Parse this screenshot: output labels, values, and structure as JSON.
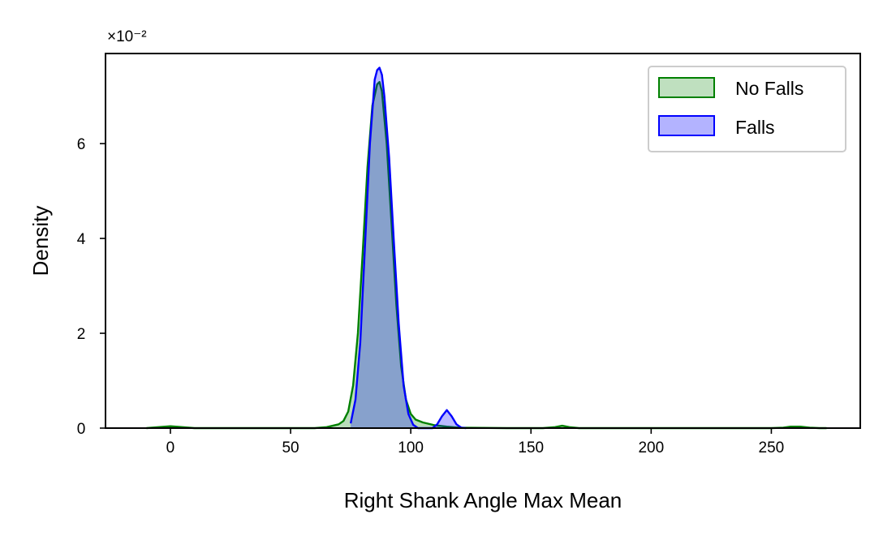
{
  "chart_data": {
    "type": "area",
    "xlabel": "Right Shank Angle Max Mean",
    "ylabel": "Density",
    "y_offset_label": "×10⁻²",
    "xlim": [
      -27,
      287
    ],
    "ylim": [
      0,
      7.9
    ],
    "x_ticks": [
      0,
      50,
      100,
      150,
      200,
      250
    ],
    "x_tick_labels": [
      "0",
      "50",
      "100",
      "150",
      "200",
      "250"
    ],
    "y_ticks": [
      0,
      2,
      4,
      6
    ],
    "y_tick_labels": [
      "0",
      "2",
      "4",
      "6"
    ],
    "grid": false,
    "legend_position": "top-right",
    "series": [
      {
        "name": "No Falls",
        "color": "#008000",
        "fill": "#bfe0bf",
        "x": [
          -10,
          -5,
          0,
          5,
          10,
          30,
          60,
          65,
          70,
          72,
          74,
          76,
          78,
          80,
          82,
          84,
          86,
          87,
          88,
          90,
          92,
          94,
          96,
          98,
          100,
          102,
          105,
          110,
          115,
          120,
          140,
          155,
          160,
          163,
          166,
          170,
          180,
          200,
          250,
          255,
          258,
          262,
          266,
          270,
          273
        ],
        "values": [
          0.0,
          0.02,
          0.04,
          0.02,
          0.0,
          0.0,
          0.0,
          0.02,
          0.08,
          0.15,
          0.35,
          0.9,
          2.0,
          3.7,
          5.5,
          6.8,
          7.25,
          7.3,
          7.1,
          6.0,
          4.3,
          2.6,
          1.3,
          0.6,
          0.3,
          0.18,
          0.12,
          0.06,
          0.03,
          0.01,
          0.0,
          0.0,
          0.02,
          0.05,
          0.02,
          0.0,
          0.0,
          0.0,
          0.0,
          0.01,
          0.03,
          0.03,
          0.01,
          0.0,
          0.0
        ]
      },
      {
        "name": "Falls",
        "color": "#0000ff",
        "fill": "#b3b3ff",
        "x": [
          75,
          77,
          79,
          81,
          83,
          85,
          86,
          87,
          88,
          89,
          91,
          93,
          95,
          97,
          99,
          101,
          103,
          106,
          109,
          111,
          113,
          115,
          117,
          119,
          121,
          123
        ],
        "values": [
          0.1,
          0.6,
          1.8,
          3.9,
          6.0,
          7.35,
          7.55,
          7.6,
          7.45,
          7.0,
          5.7,
          3.9,
          2.2,
          0.9,
          0.3,
          0.07,
          0.0,
          0.0,
          0.0,
          0.08,
          0.25,
          0.38,
          0.25,
          0.08,
          0.01,
          0.0
        ]
      }
    ]
  }
}
